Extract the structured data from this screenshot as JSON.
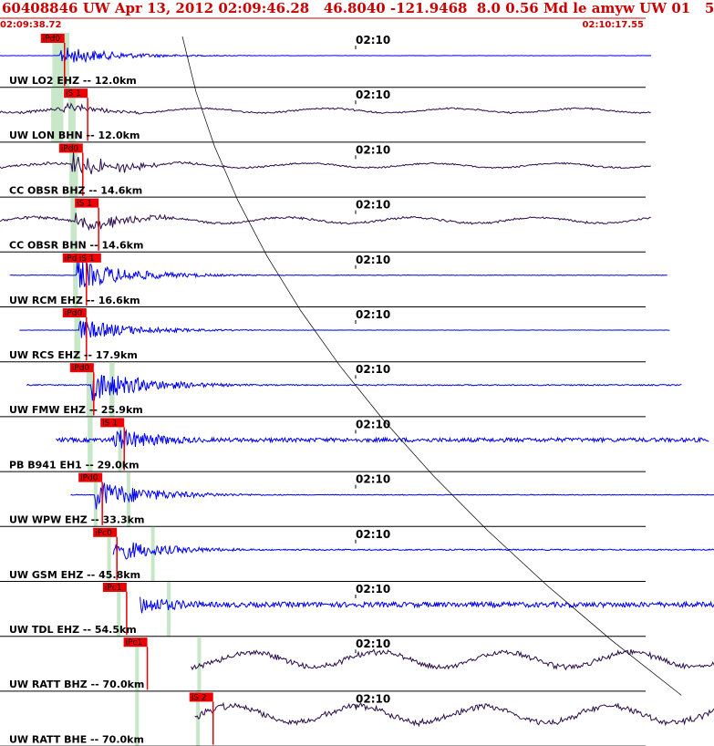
{
  "header": {
    "title": "60408846 UW Apr 13, 2012 02:09:46.28   46.8040 -121.9468  8.0 0.56 Md le amyw UW 01   5",
    "start_time": "02:09:38.72",
    "end_time": "02:10:17.55",
    "title_color": "#cc0000"
  },
  "colors": {
    "blue_trace": "#0000ee",
    "dark_trace": "#2a0a4a",
    "pick": "#ee0000",
    "window": "#c8e6c8",
    "separator": "#000000"
  },
  "traces": [
    {
      "label": "UW LO2 EHZ -- 12.0km",
      "tick": "02:10",
      "color": "blue",
      "pick_label": "iPd0",
      "pick_time": 3.5,
      "win": [
        4.3,
        5.7
      ],
      "s_label": "",
      "s_time": 0,
      "s_win": [],
      "range": [
        0,
        53.5
      ],
      "amp": 0.35,
      "onset": 4.9,
      "noise": 0.02,
      "kind": "hf"
    },
    {
      "label": "UW LON BHN -- 12.0km",
      "tick": "02:10",
      "color": "dark",
      "pick_label": "iS 1",
      "pick_time": 5.4,
      "win": [
        4.2,
        5.2
      ],
      "s_label": "",
      "s_time": 0,
      "s_win": [
        5.6,
        6.2
      ],
      "range": [
        0,
        53.5
      ],
      "amp": 0.25,
      "onset": 4.9,
      "noise": 0.15,
      "kind": "lf"
    },
    {
      "label": "CC OBSR BHZ -- 14.6km",
      "tick": "02:10",
      "color": "dark",
      "pick_label": "iPd0",
      "pick_time": 5.0,
      "win": [
        5.7,
        6.4
      ],
      "s_label": "",
      "s_time": 0,
      "s_win": [],
      "range": [
        0,
        53.5
      ],
      "amp": 0.6,
      "onset": 5.9,
      "noise": 0.15,
      "kind": "lf"
    },
    {
      "label": "CC OBSR BHN -- 14.6km",
      "tick": "02:10",
      "color": "dark",
      "pick_label": "iS 1",
      "pick_time": 6.3,
      "win": [
        5.8,
        6.3
      ],
      "s_label": "",
      "s_time": 0,
      "s_win": [],
      "range": [
        0,
        53.5
      ],
      "amp": 0.55,
      "onset": 6.2,
      "noise": 0.2,
      "kind": "lf"
    },
    {
      "label": "UW RCM EHZ -- 16.6km",
      "tick": "02:10",
      "color": "blue",
      "pick_label": "iPd0",
      "pick_time": 5.3,
      "win": [
        6.0,
        6.4
      ],
      "s_label": "iS 1",
      "s_time": 6.5,
      "s_win": [],
      "range": [
        0.8,
        54.8
      ],
      "amp": 0.55,
      "onset": 6.3,
      "noise": 0.04,
      "kind": "hf"
    },
    {
      "label": "UW RCS EHZ -- 17.9km",
      "tick": "02:10",
      "color": "blue",
      "pick_label": "iPd0",
      "pick_time": 5.3,
      "win": [
        6.1,
        6.6
      ],
      "s_label": "",
      "s_time": 0,
      "s_win": [],
      "range": [
        1.6,
        55.0
      ],
      "amp": 0.4,
      "onset": 6.5,
      "noise": 0.02,
      "kind": "hf"
    },
    {
      "label": "UW FMW EHZ -- 25.9km",
      "tick": "02:10",
      "color": "blue",
      "pick_label": "iPd0",
      "pick_time": 5.9,
      "win": [
        7.1,
        7.7
      ],
      "s_label": "",
      "s_time": 0,
      "s_win": [
        9.0,
        9.4
      ],
      "range": [
        2.2,
        56.0
      ],
      "amp": 0.6,
      "onset": 7.5,
      "noise": 0.08,
      "kind": "hf"
    },
    {
      "label": "PB B941 EH1 -- 29.0km",
      "tick": "02:10",
      "color": "blue",
      "pick_label": "iS 1",
      "pick_time": 8.4,
      "win": [
        7.2,
        7.6
      ],
      "s_label": "",
      "s_time": 0,
      "s_win": [
        9.7,
        10.0
      ],
      "range": [
        4.6,
        58.2
      ],
      "amp": 0.45,
      "onset": 9.2,
      "noise": 0.28,
      "kind": "hf"
    },
    {
      "label": "UW WPW EHZ -- 33.3km",
      "tick": "02:10",
      "color": "blue",
      "pick_label": "iPd0",
      "pick_time": 6.6,
      "win": [
        7.7,
        7.9
      ],
      "s_label": "",
      "s_time": 0,
      "s_win": [
        10.4,
        10.7
      ],
      "range": [
        5.8,
        59.0
      ],
      "amp": 0.55,
      "onset": 7.8,
      "noise": 0.05,
      "kind": "hf"
    },
    {
      "label": "UW GSM EHZ -- 45.8km",
      "tick": "02:10",
      "color": "blue",
      "pick_label": "iPc0",
      "pick_time": 7.8,
      "win": [
        8.8,
        9.1
      ],
      "s_label": "",
      "s_time": 0,
      "s_win": [
        12.4,
        12.7
      ],
      "range": [
        9.3,
        62.3
      ],
      "amp": 0.45,
      "onset": 9.1,
      "noise": 0.09,
      "kind": "hf"
    },
    {
      "label": "UW TDL EHZ -- 54.5km",
      "tick": "02:10",
      "color": "blue",
      "pick_label": "iPc1",
      "pick_time": 8.6,
      "win": [
        9.6,
        9.9
      ],
      "s_label": "",
      "s_time": 0,
      "s_win": [
        13.7,
        13.9
      ],
      "range": [
        11.5,
        64.5
      ],
      "amp": 0.5,
      "onset": 9.7,
      "noise": 0.35,
      "kind": "hf"
    },
    {
      "label": "UW RATT BHZ -- 70.0km",
      "tick": "02:10",
      "color": "dark",
      "pick_label": "iPc1",
      "pick_time": 10.3,
      "win": [
        11.1,
        11.4
      ],
      "s_label": "",
      "s_time": 0,
      "s_win": [
        16.2,
        16.5
      ],
      "range": [
        15.7,
        68.3
      ],
      "amp": 0.25,
      "onset": 11.2,
      "noise": 0.5,
      "kind": "lf"
    },
    {
      "label": "UW RATT BHE -- 70.0km",
      "tick": "02:10",
      "color": "dark",
      "pick_label": "iS 2",
      "pick_time": 15.7,
      "win": [
        11.1,
        11.4
      ],
      "s_label": "",
      "s_time": 0,
      "s_win": [
        16.1,
        16.4
      ],
      "range": [
        16.0,
        69.0
      ],
      "amp": 0.3,
      "onset": 16.1,
      "noise": 0.55,
      "kind": "lf"
    }
  ]
}
